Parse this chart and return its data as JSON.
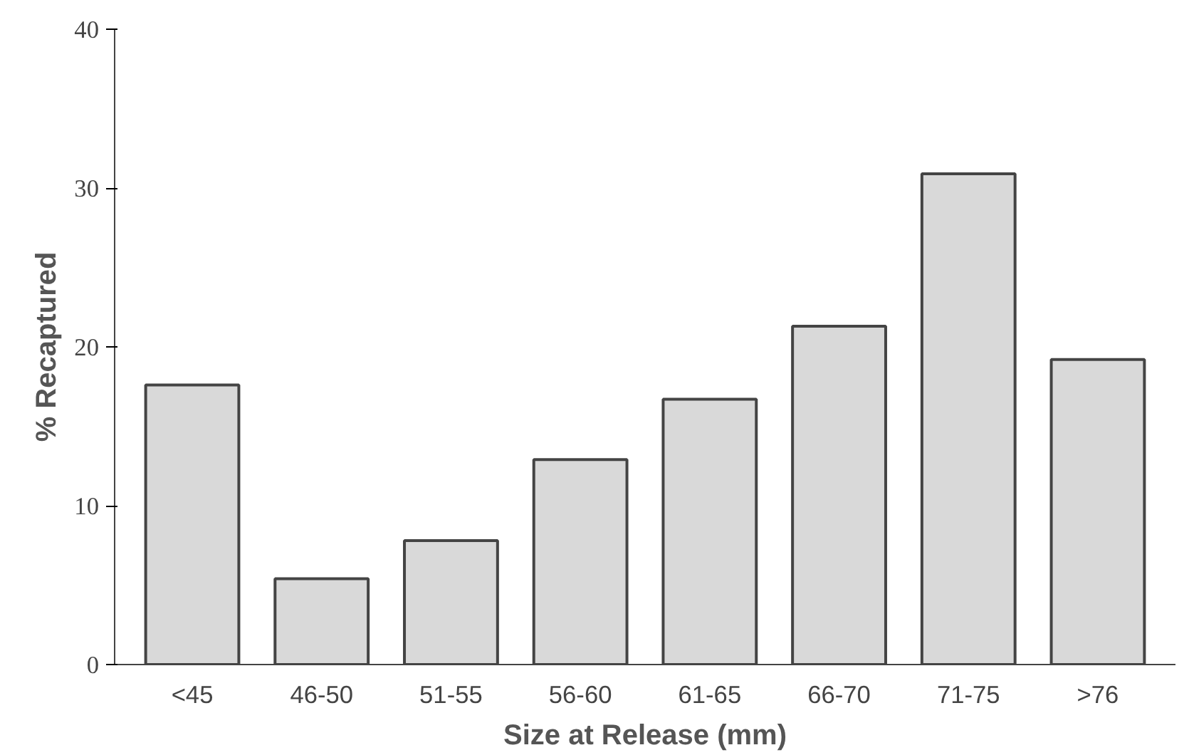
{
  "chart_data": {
    "type": "bar",
    "xlabel": "Size at Release (mm)",
    "ylabel": "% Recaptured",
    "categories": [
      "<45",
      "46-50",
      "51-55",
      "56-60",
      "61-65",
      "66-70",
      "71-75",
      ">76"
    ],
    "values": [
      17.6,
      5.4,
      7.8,
      12.9,
      16.7,
      21.3,
      30.9,
      19.2
    ],
    "color": "#d9d9d9",
    "ylim": [
      0,
      40
    ],
    "yticks": [
      0,
      10,
      20,
      30,
      40
    ],
    "grid": false
  }
}
